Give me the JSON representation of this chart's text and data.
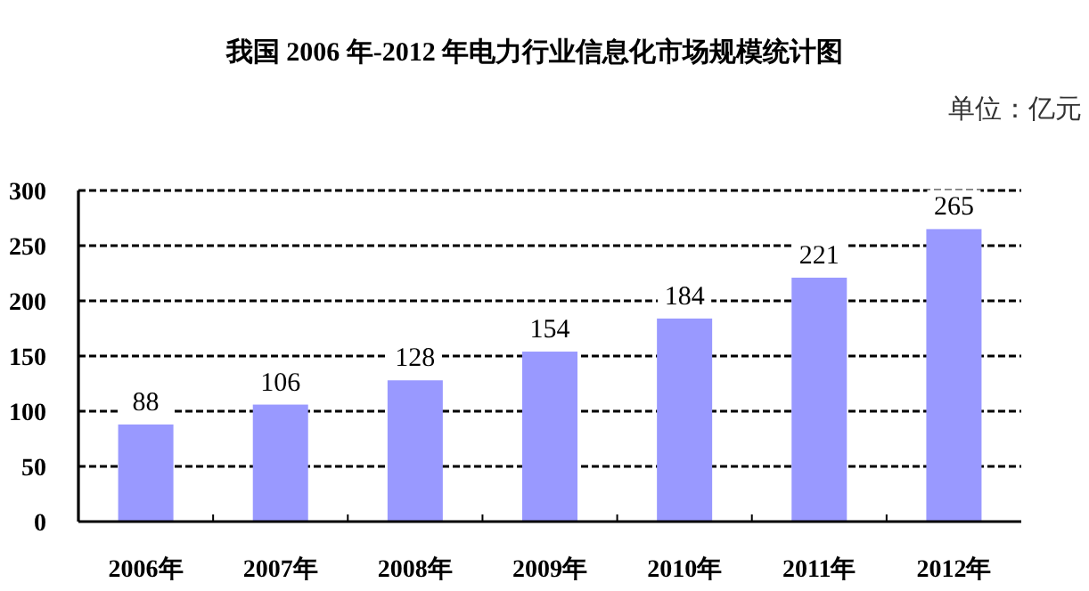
{
  "chart_data": {
    "type": "bar",
    "title": "我国 2006 年-2012 年电力行业信息化市场规模统计图",
    "annotations": [
      "单位：亿元"
    ],
    "categories": [
      "2006年",
      "2007年",
      "2008年",
      "2009年",
      "2010年",
      "2011年",
      "2012年"
    ],
    "values": [
      88,
      106,
      128,
      154,
      184,
      221,
      265
    ],
    "color": "#9999ff",
    "ylim": [
      0,
      300
    ],
    "yticks": [
      0,
      50,
      100,
      150,
      200,
      250,
      300
    ],
    "grid": "y",
    "data_labels": true
  }
}
